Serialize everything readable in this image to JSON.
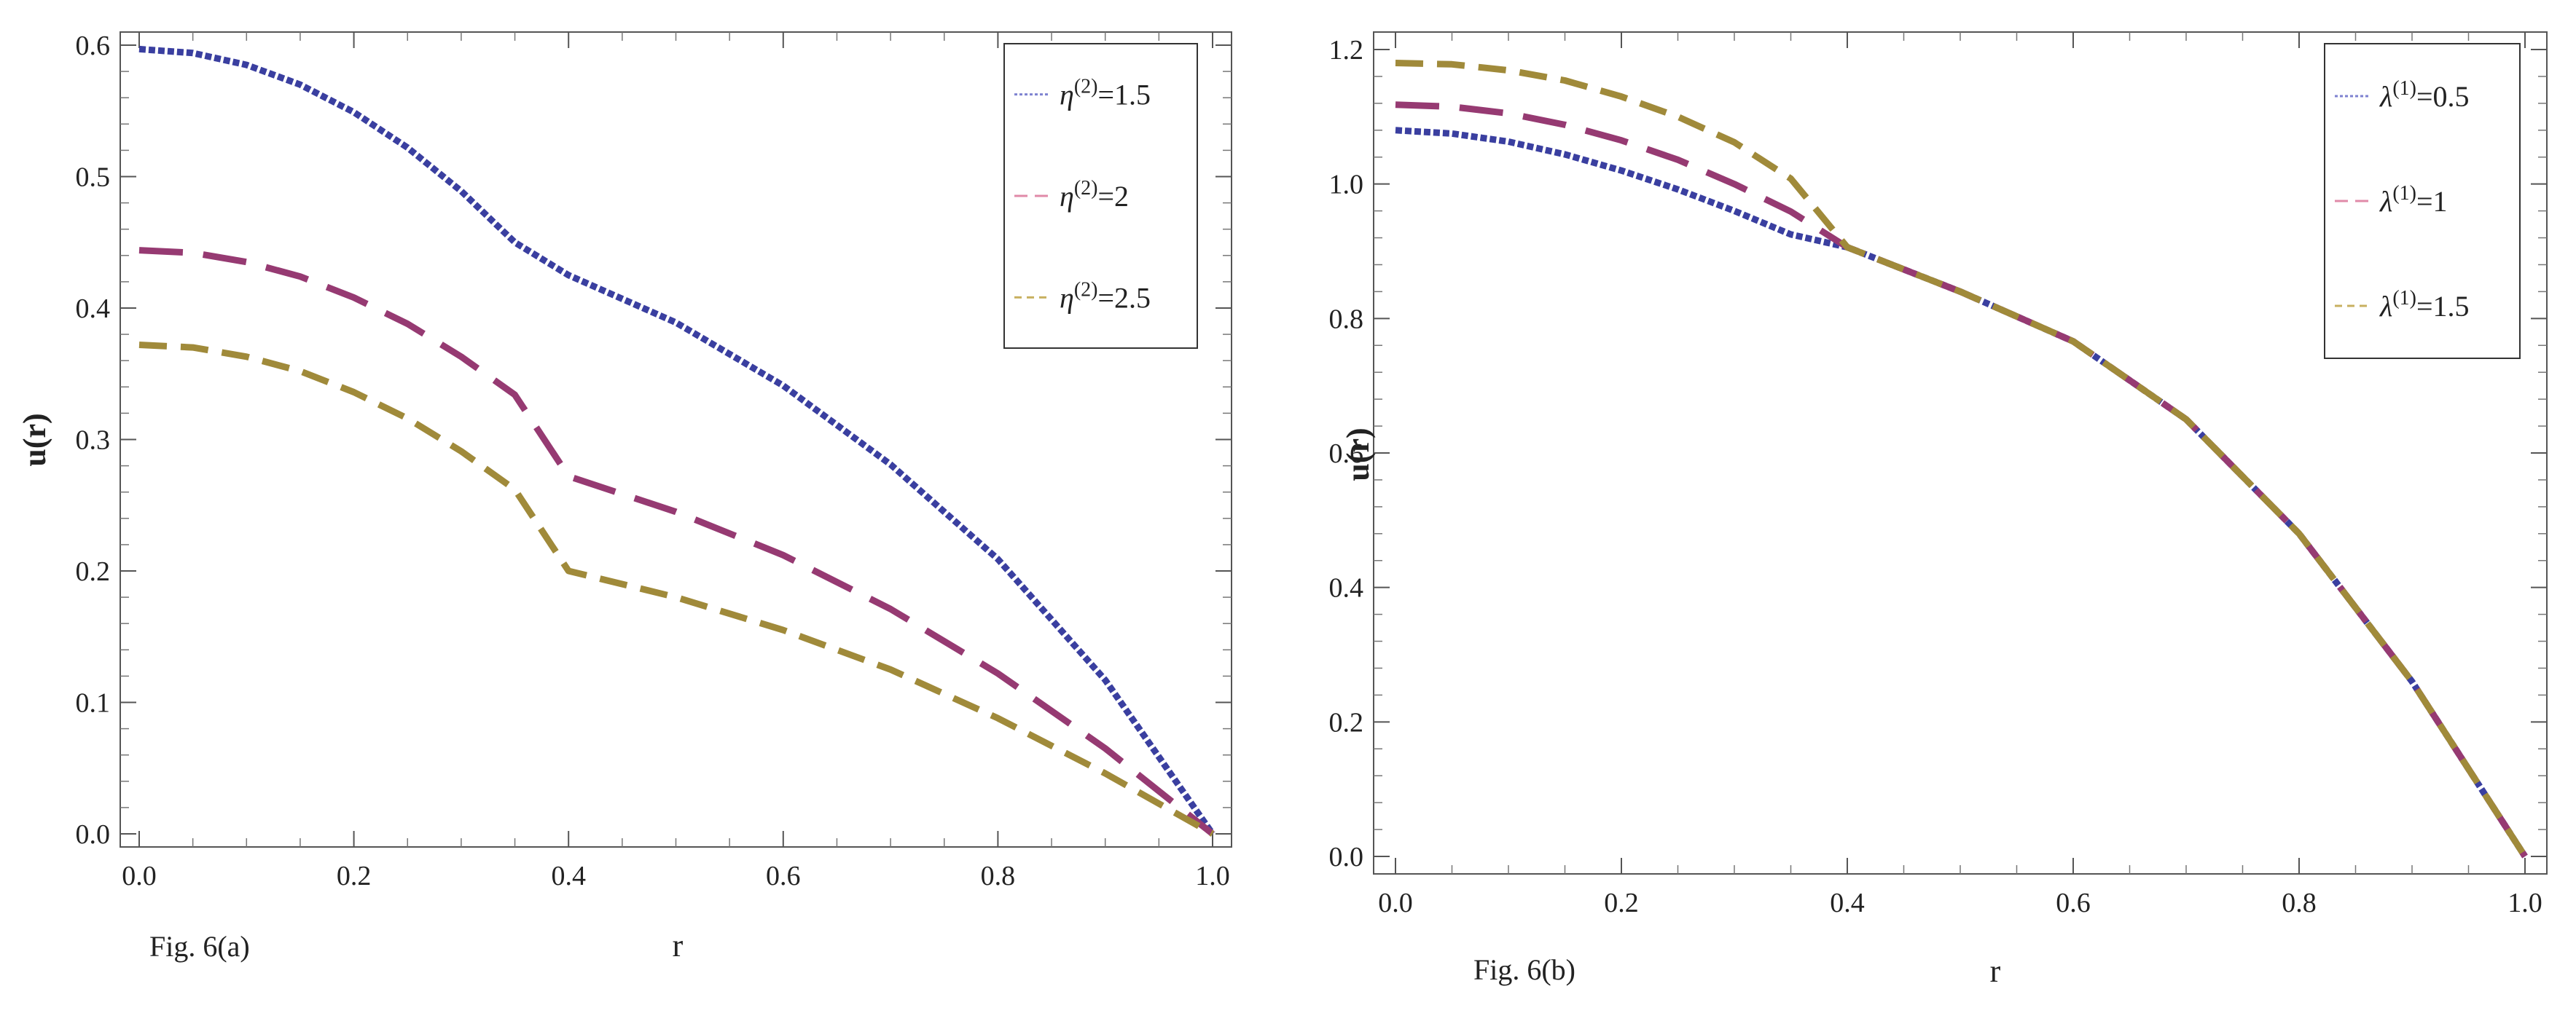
{
  "chart_data": [
    {
      "type": "line",
      "caption": "Fig. 6(a)",
      "xlabel": "r",
      "ylabel": "u(r)",
      "xlim": [
        0,
        1
      ],
      "ylim": [
        0,
        0.6
      ],
      "xticks": [
        "0.0",
        "0.2",
        "0.4",
        "0.6",
        "0.8",
        "1.0"
      ],
      "yticks": [
        "0.0",
        "0.1",
        "0.2",
        "0.3",
        "0.4",
        "0.5",
        "0.6"
      ],
      "legend_position": "top-right",
      "series": [
        {
          "name": "η(2)=1.5",
          "symbol": "η",
          "sup": "(2)",
          "value_label": "=1.5",
          "color": "#3a3fa0",
          "legend_color": "#7e82d0",
          "dash": "fine",
          "x": [
            0,
            0.05,
            0.1,
            0.15,
            0.2,
            0.25,
            0.3,
            0.35,
            0.4,
            0.5,
            0.6,
            0.7,
            0.8,
            0.9,
            1.0
          ],
          "y": [
            0.597,
            0.594,
            0.585,
            0.57,
            0.549,
            0.522,
            0.489,
            0.45,
            0.425,
            0.389,
            0.341,
            0.281,
            0.209,
            0.117,
            0.0
          ]
        },
        {
          "name": "η(2)=2",
          "symbol": "η",
          "sup": "(2)",
          "value_label": "=2",
          "color": "#963a72",
          "legend_color": "#e08aa8",
          "dash": "long",
          "x": [
            0,
            0.05,
            0.1,
            0.15,
            0.2,
            0.25,
            0.3,
            0.35,
            0.4,
            0.5,
            0.6,
            0.7,
            0.8,
            0.9,
            1.0
          ],
          "y": [
            0.444,
            0.442,
            0.435,
            0.424,
            0.408,
            0.388,
            0.363,
            0.334,
            0.272,
            0.245,
            0.212,
            0.171,
            0.122,
            0.065,
            0.0
          ]
        },
        {
          "name": "η(2)=2.5",
          "symbol": "η",
          "sup": "(2)",
          "value_label": "=2.5",
          "color": "#a08a3a",
          "legend_color": "#c8b060",
          "dash": "medium",
          "x": [
            0,
            0.05,
            0.1,
            0.15,
            0.2,
            0.25,
            0.3,
            0.35,
            0.4,
            0.5,
            0.6,
            0.7,
            0.8,
            0.9,
            1.0
          ],
          "y": [
            0.372,
            0.37,
            0.363,
            0.352,
            0.336,
            0.316,
            0.291,
            0.262,
            0.2,
            0.18,
            0.155,
            0.125,
            0.088,
            0.046,
            0.0
          ]
        }
      ]
    },
    {
      "type": "line",
      "caption": "Fig. 6(b)",
      "xlabel": "r",
      "ylabel": "u(r)",
      "xlim": [
        0,
        1
      ],
      "ylim": [
        0,
        1.2
      ],
      "xticks": [
        "0.0",
        "0.2",
        "0.4",
        "0.6",
        "0.8",
        "1.0"
      ],
      "yticks": [
        "0.0",
        "0.2",
        "0.4",
        "0.6",
        "0.8",
        "1.0",
        "1.2"
      ],
      "legend_position": "top-right",
      "series": [
        {
          "name": "λ(1)=0.5",
          "symbol": "λ",
          "sup": "(1)",
          "value_label": "=0.5",
          "color": "#3a3fa0",
          "legend_color": "#7e82d0",
          "dash": "fine",
          "x": [
            0,
            0.05,
            0.1,
            0.15,
            0.2,
            0.25,
            0.3,
            0.35,
            0.4,
            0.5,
            0.6,
            0.7,
            0.8,
            0.9,
            1.0
          ],
          "y": [
            1.08,
            1.075,
            1.063,
            1.044,
            1.02,
            0.992,
            0.96,
            0.925,
            0.906,
            0.84,
            0.766,
            0.65,
            0.48,
            0.26,
            0.0
          ]
        },
        {
          "name": "λ(1)=1",
          "symbol": "λ",
          "sup": "(1)",
          "value_label": "=1",
          "color": "#963a72",
          "legend_color": "#e08aa8",
          "dash": "long",
          "x": [
            0,
            0.05,
            0.1,
            0.15,
            0.2,
            0.25,
            0.3,
            0.35,
            0.4,
            0.5,
            0.6,
            0.7,
            0.8,
            0.9,
            1.0
          ],
          "y": [
            1.118,
            1.115,
            1.105,
            1.088,
            1.065,
            1.036,
            1.0,
            0.959,
            0.906,
            0.84,
            0.766,
            0.65,
            0.48,
            0.26,
            0.0
          ]
        },
        {
          "name": "λ(1)=1.5",
          "symbol": "λ",
          "sup": "(1)",
          "value_label": "=1.5",
          "color": "#a08a3a",
          "legend_color": "#c8b060",
          "dash": "medium",
          "x": [
            0,
            0.05,
            0.1,
            0.15,
            0.2,
            0.25,
            0.3,
            0.35,
            0.4,
            0.5,
            0.6,
            0.7,
            0.8,
            0.9,
            1.0
          ],
          "y": [
            1.18,
            1.178,
            1.169,
            1.154,
            1.13,
            1.1,
            1.062,
            1.008,
            0.906,
            0.84,
            0.766,
            0.65,
            0.48,
            0.26,
            0.0
          ]
        }
      ]
    }
  ]
}
